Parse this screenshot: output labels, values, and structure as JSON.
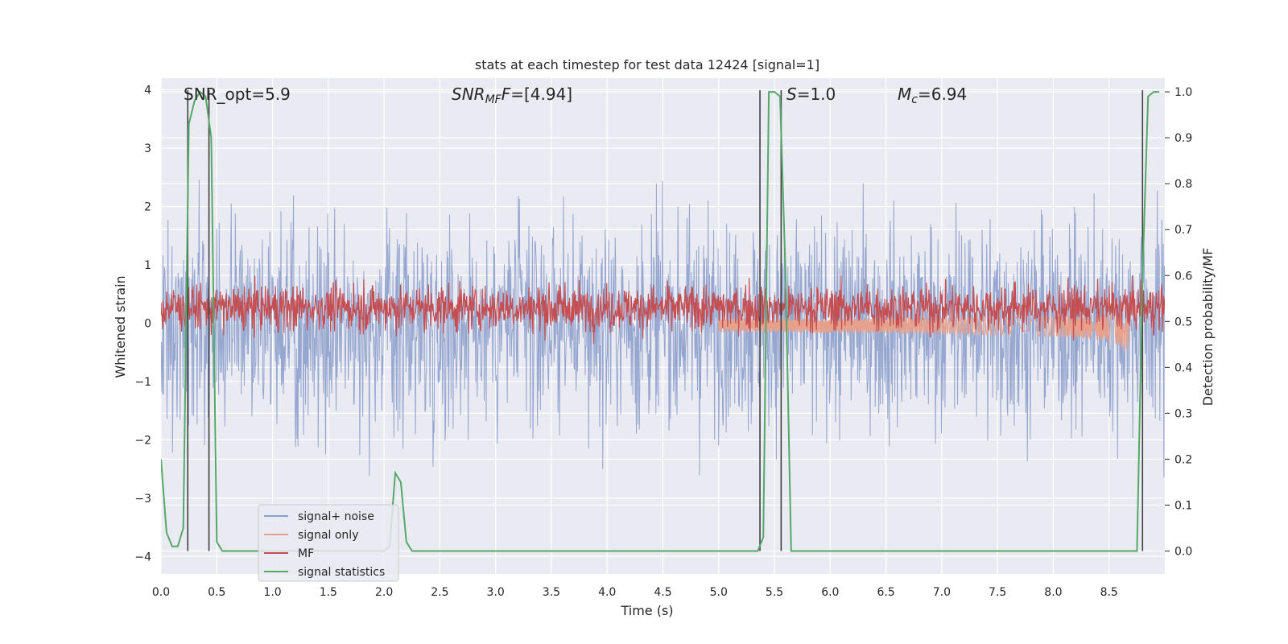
{
  "chart_data": {
    "type": "line",
    "title": "stats at each timestep for test data 12424 [signal=1]",
    "xlabel": "Time (s)",
    "ylabel": "Whitened strain",
    "ylabel_right": "Detection probability/MF",
    "xlim": [
      0.0,
      9.0
    ],
    "ylim": [
      -4.3,
      4.2
    ],
    "ylim_right": [
      -0.05,
      1.03
    ],
    "x_ticks": [
      "0.0",
      "0.5",
      "1.0",
      "1.5",
      "2.0",
      "2.5",
      "3.0",
      "3.5",
      "4.0",
      "4.5",
      "5.0",
      "5.5",
      "6.0",
      "6.5",
      "7.0",
      "7.5",
      "8.0",
      "8.5"
    ],
    "y_ticks": [
      "4",
      "3",
      "2",
      "1",
      "0",
      "−1",
      "−2",
      "−3",
      "−4"
    ],
    "y_right_ticks": [
      "1.0",
      "0.9",
      "0.8",
      "0.7",
      "0.6",
      "0.5",
      "0.4",
      "0.3",
      "0.2",
      "0.1",
      "0.0"
    ],
    "grid": true,
    "legend_position": "lower-left",
    "annotations": {
      "snr_opt": "SNR_opt=5.9",
      "snr_mf_label": "SNR",
      "snr_mf_sub": "MF",
      "snr_mf_value": "=[4.94]",
      "s_label": "S",
      "s_value": "=1.0",
      "mc_label": "M",
      "mc_sub": "c",
      "mc_value": "=6.94"
    },
    "series": [
      {
        "name": "signal+ noise",
        "color": "#8c9fcb",
        "description_values": {
          "mean": 0.0,
          "envelope_upper": 3.5,
          "envelope_lower": -3.5
        }
      },
      {
        "name": "signal only",
        "color": "#e8a08a",
        "chirp": {
          "start_time": 5.0,
          "end_time": 8.68,
          "peak_amplitude": -0.7
        }
      },
      {
        "name": "MF",
        "color": "#c44e52",
        "band": [
          0.05,
          0.6
        ]
      },
      {
        "name": "signal statistics",
        "color": "#55a868",
        "x": [
          0.0,
          0.05,
          0.1,
          0.15,
          0.2,
          0.25,
          0.3,
          0.35,
          0.4,
          0.45,
          0.5,
          0.55,
          0.6,
          0.65,
          2.0,
          2.05,
          2.1,
          2.15,
          2.2,
          2.25,
          2.3,
          2.35,
          5.3,
          5.35,
          5.4,
          5.45,
          5.5,
          5.55,
          5.6,
          5.65,
          5.7,
          5.75,
          8.75,
          8.8,
          8.85,
          8.9,
          8.95
        ],
        "y": [
          0.2,
          0.04,
          0.01,
          0.01,
          0.05,
          0.93,
          0.98,
          1.0,
          0.99,
          0.9,
          0.02,
          0.0,
          0.0,
          0.0,
          0.0,
          0.01,
          0.17,
          0.15,
          0.02,
          0.0,
          0.0,
          0.0,
          0.0,
          0.0,
          0.03,
          1.0,
          1.0,
          0.99,
          0.6,
          0.0,
          0.0,
          0.0,
          0.0,
          0.6,
          0.99,
          1.0,
          1.0
        ]
      }
    ],
    "vertical_markers": [
      0.24,
      0.43,
      5.37,
      5.56,
      8.8
    ]
  },
  "colors": {
    "plot_bg": "#eaeaf2",
    "grid": "#ffffff",
    "noise": "#8c9fcb",
    "signal": "#e8a08a",
    "mf": "#c44e52",
    "stat": "#55a868",
    "marker": "#404040"
  }
}
